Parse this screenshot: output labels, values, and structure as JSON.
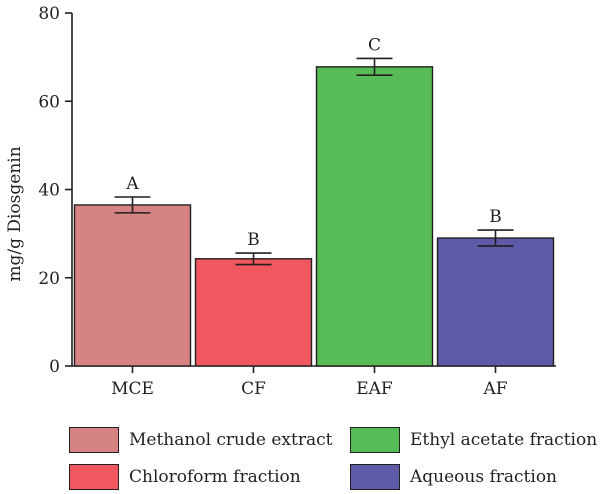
{
  "chart_data": {
    "type": "bar",
    "categories": [
      "MCE",
      "CF",
      "EAF",
      "AF"
    ],
    "values": [
      36.5,
      24.3,
      67.8,
      29.0
    ],
    "errors": [
      1.8,
      1.3,
      1.9,
      1.8
    ],
    "group_labels": [
      "A",
      "B",
      "C",
      "B"
    ],
    "colors": [
      "#d58383",
      "#f0575e",
      "#57bc56",
      "#5d5aa7"
    ],
    "ylabel": "mg/g Diosgenin",
    "xlabel": "",
    "ylim": [
      0,
      80
    ],
    "yticks": [
      0,
      20,
      40,
      60,
      80
    ],
    "grid": false,
    "legend": {
      "placement": "bottom",
      "entries": [
        {
          "label": "Methanol crude extract",
          "color": "#d58383"
        },
        {
          "label": "Chloroform fraction",
          "color": "#f0575e"
        },
        {
          "label": "Ethyl acetate fraction",
          "color": "#57bc56"
        },
        {
          "label": "Aqueous fraction",
          "color": "#5d5aa7"
        }
      ]
    }
  }
}
